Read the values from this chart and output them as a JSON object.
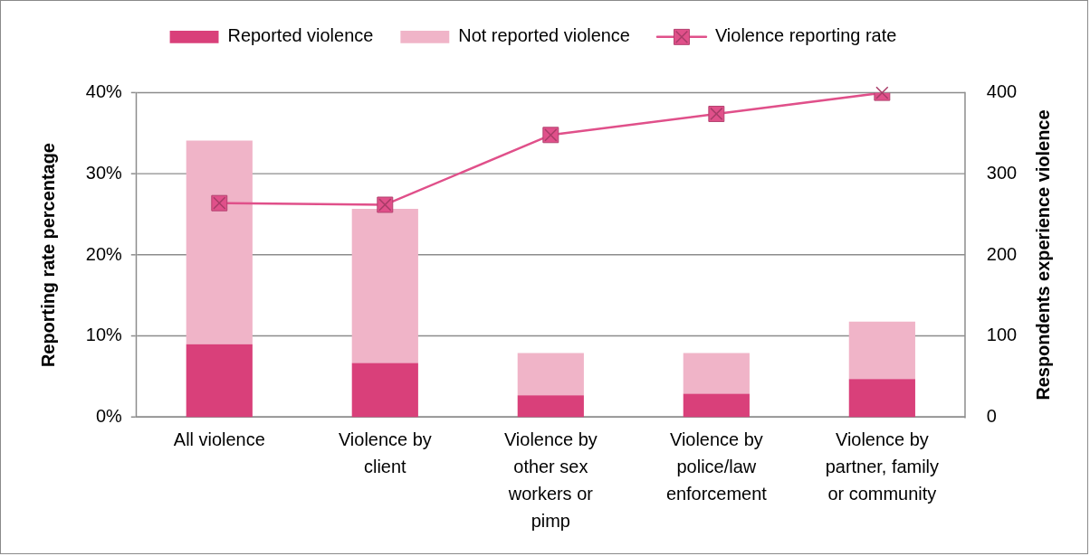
{
  "chart_data": {
    "type": "bar",
    "categories": [
      "All violence",
      "Violence by client",
      "Violence by other sex workers or pimp",
      "Violence by police/law enforcement",
      "Violence by partner, family or community"
    ],
    "series": [
      {
        "name": "Reported violence",
        "color": "#d9407a",
        "values": [
          90,
          67,
          27,
          29,
          47
        ],
        "axis": "y2"
      },
      {
        "name": "Not reported violence",
        "color": "#f0b4c8",
        "values": [
          251,
          190,
          52,
          50,
          71
        ],
        "axis": "y2"
      },
      {
        "name": "Violence reporting rate",
        "type": "line",
        "color": "#e0508a",
        "values": [
          26.4,
          26.2,
          34.8,
          37.4,
          40
        ]
      }
    ],
    "stacked": true,
    "ylabel": "Reporting rate percentage",
    "y2label": "Respondents experience violence",
    "ylim": [
      0,
      40
    ],
    "yticks": [
      {
        "value": 0,
        "label": "0%"
      },
      {
        "value": 10,
        "label": "10%"
      },
      {
        "value": 20,
        "label": "20%"
      },
      {
        "value": 30,
        "label": "30%"
      },
      {
        "value": 40,
        "label": "40%"
      }
    ],
    "y2lim": [
      0,
      400
    ],
    "y2ticks": [
      0,
      100,
      200,
      300,
      400
    ],
    "grid": "y",
    "legend": "top",
    "marker": "square",
    "line_style": "solid"
  }
}
